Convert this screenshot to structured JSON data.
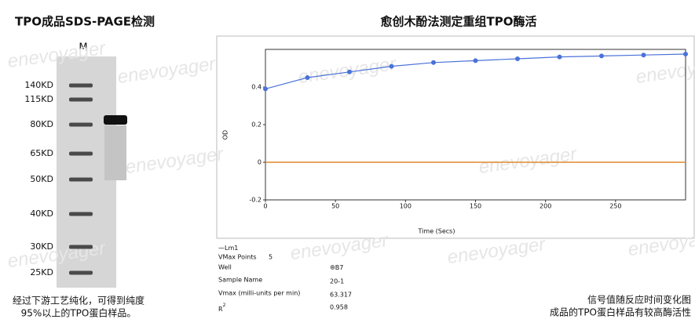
{
  "left": {
    "title": "TPO成品SDS-PAGE检测",
    "lane_label": "M",
    "markers": [
      "140KD",
      "115KD",
      "80KD",
      "65KD",
      "50KD",
      "40KD",
      "30KD",
      "25KD"
    ],
    "caption": [
      "经过下游工艺纯化，可得到纯度",
      "95%以上的TPO蛋白样品。"
    ]
  },
  "watermark": "enevoyager",
  "chart_data": {
    "type": "line",
    "title": "愈创木酚法测定重组TPO酶活",
    "x_label": "Time (Secs)",
    "y_label": "OD",
    "x": [
      0,
      30,
      60,
      90,
      120,
      150,
      180,
      210,
      240,
      270,
      300
    ],
    "series": [
      {
        "name": "Lm1",
        "color": "#4a72d8",
        "values": [
          0.39,
          0.45,
          0.48,
          0.51,
          0.53,
          0.54,
          0.55,
          0.56,
          0.565,
          0.57,
          0.575
        ]
      }
    ],
    "reference_line": {
      "value": 0,
      "color": "#e0892a"
    },
    "xlim": [
      0,
      300
    ],
    "xticks": [
      0,
      50,
      100,
      150,
      200,
      250
    ],
    "ylim": [
      -0.2,
      0.6
    ],
    "yticks": [
      -0.2,
      0,
      0.2,
      0.4
    ],
    "info": {
      "vmax_points_label": "VMax Points",
      "vmax_points": "5",
      "well_label": "Well",
      "well": "B7",
      "sample_label": "Sample Name",
      "sample": "20-1",
      "vmax_label": "Vmax (milli-units per min)",
      "vmax": "63.317",
      "r2_label": "R",
      "r2_sup": "2",
      "r2": "0.958"
    },
    "caption": [
      "信号值随反应时间变化图",
      "成品的TPO蛋白样品有较高酶活性"
    ]
  }
}
